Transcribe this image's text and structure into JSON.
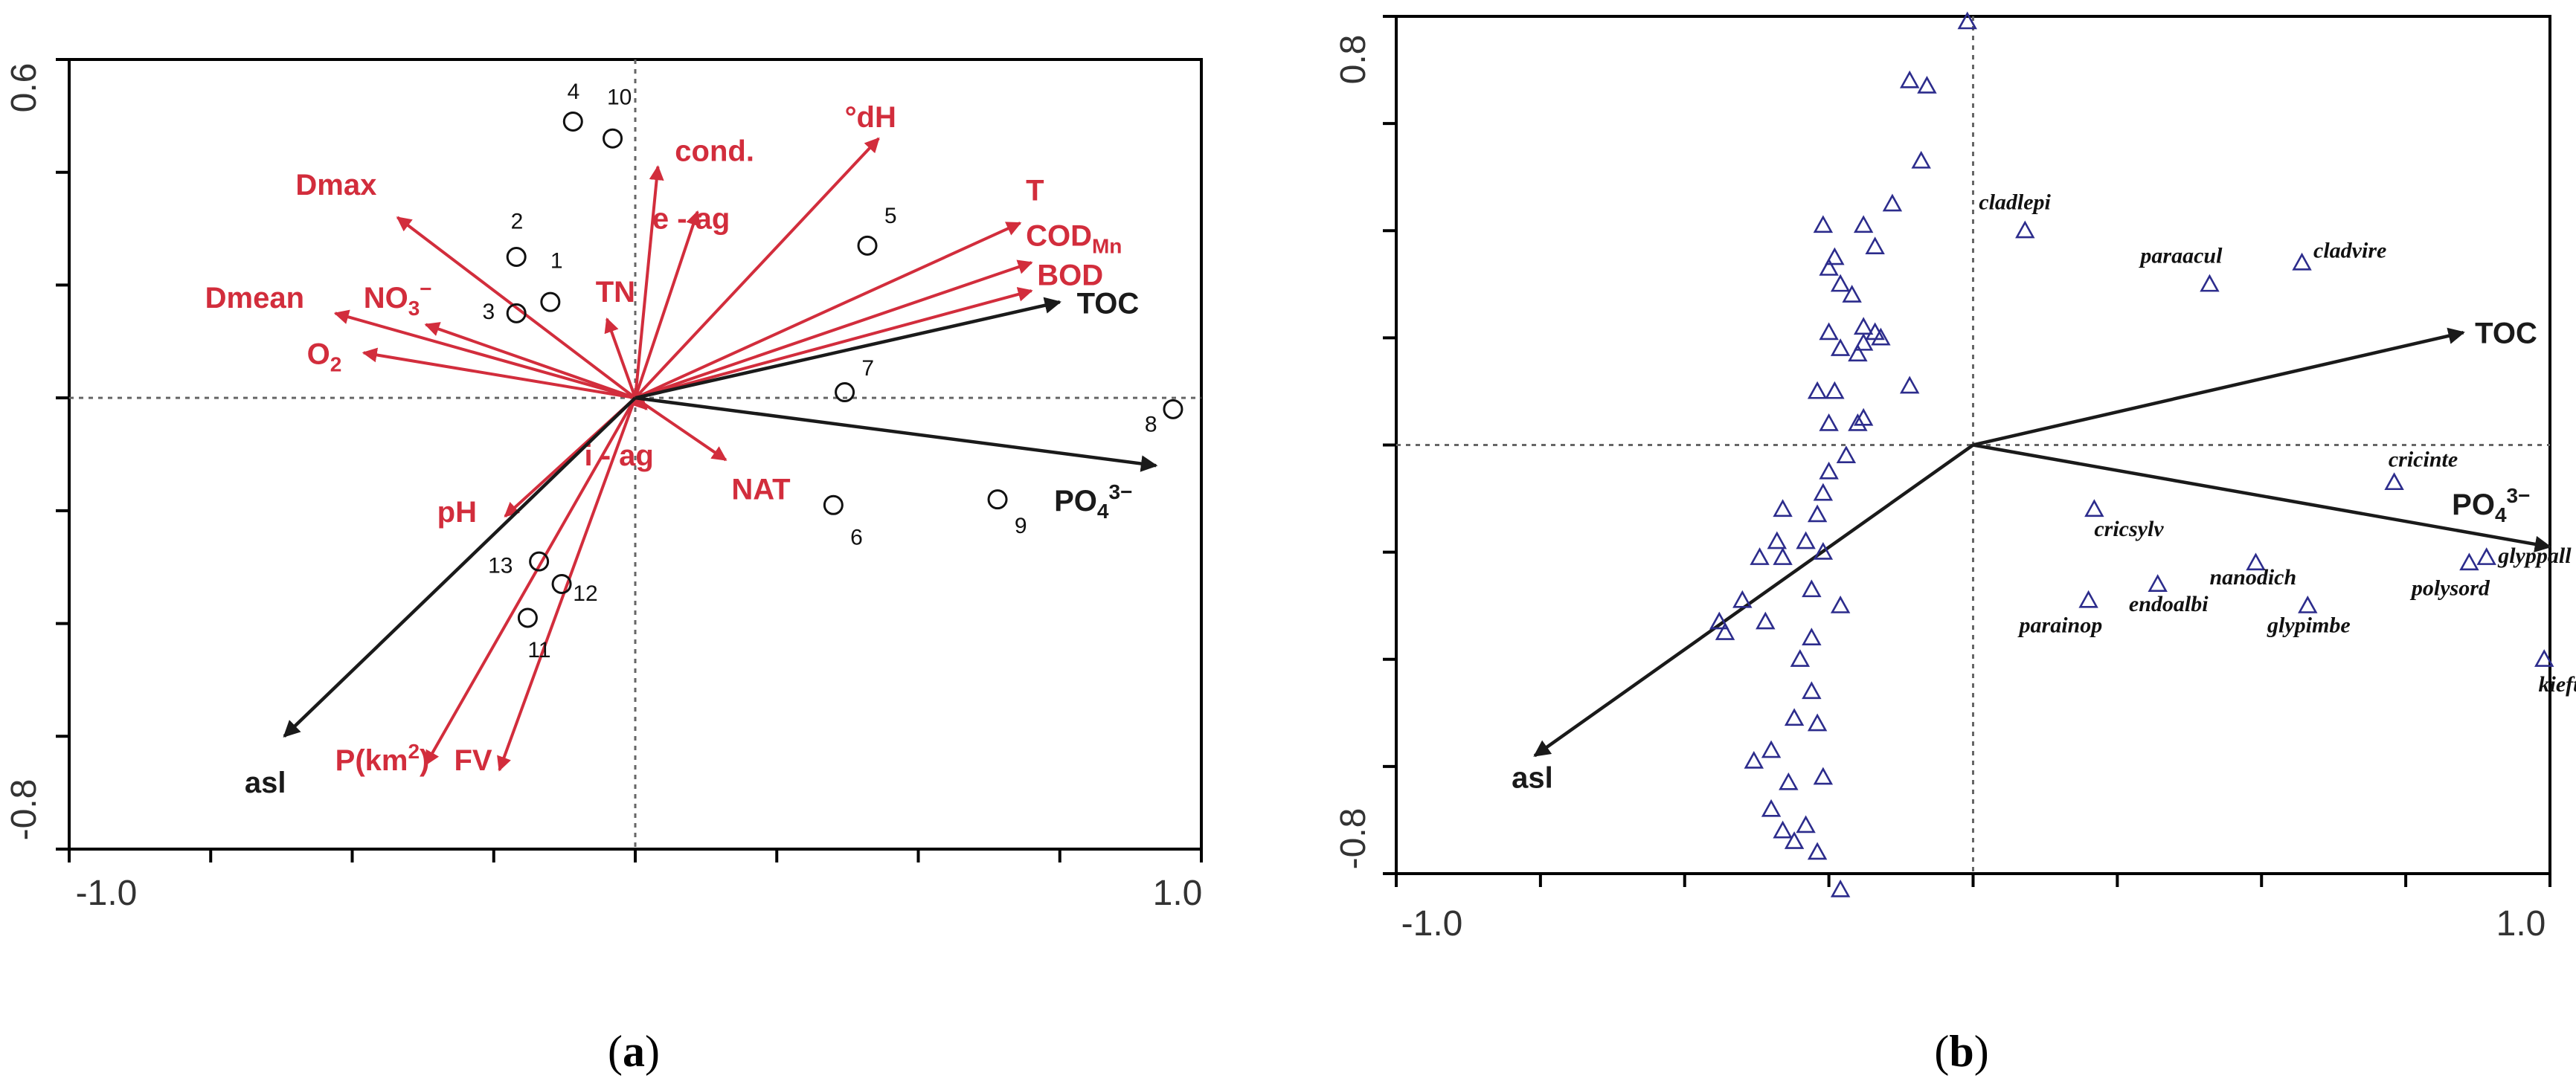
{
  "colors": {
    "env_arrow": "#d22d3c",
    "key_arrow": "#1a1a1a",
    "site_marker": "#111111",
    "species_marker": "#2c2c8c",
    "frame": "#000000"
  },
  "chart_data": [
    {
      "id": "a",
      "type": "scatter",
      "subtype": "ordination-biplot",
      "caption": {
        "open": "(",
        "letter": "a",
        "close": ")"
      },
      "xlim": [
        -1.0,
        1.0
      ],
      "ylim": [
        -0.8,
        0.6
      ],
      "x_tick_labels": {
        "min": "-1.0",
        "max": "1.0"
      },
      "y_tick_labels": {
        "min": "-0.8",
        "max": "0.6"
      },
      "env_arrows": [
        {
          "name": "Dmax",
          "label": "Dmax",
          "x": -0.42,
          "y": 0.32,
          "lx": -0.6,
          "ly": 0.36
        },
        {
          "name": "Dmean",
          "label": "Dmean",
          "x": -0.53,
          "y": 0.15,
          "lx": -0.76,
          "ly": 0.16
        },
        {
          "name": "NO3",
          "label": "NO",
          "sub": "3",
          "sup": "−",
          "x": -0.37,
          "y": 0.13,
          "lx": -0.48,
          "ly": 0.16
        },
        {
          "name": "O2",
          "label": "O",
          "sub": "2",
          "x": -0.48,
          "y": 0.08,
          "lx": -0.58,
          "ly": 0.06
        },
        {
          "name": "TN",
          "label": "TN",
          "x": -0.05,
          "y": 0.14,
          "lx": -0.07,
          "ly": 0.17
        },
        {
          "name": "e-ag",
          "label": "e - ag",
          "x": 0.11,
          "y": 0.33,
          "lx": 0.03,
          "ly": 0.3
        },
        {
          "name": "cond.",
          "label": "cond.",
          "x": 0.04,
          "y": 0.41,
          "lx": 0.07,
          "ly": 0.42
        },
        {
          "name": "dH",
          "label": "°dH",
          "x": 0.43,
          "y": 0.46,
          "lx": 0.37,
          "ly": 0.48
        },
        {
          "name": "T",
          "label": "T",
          "x": 0.68,
          "y": 0.31,
          "lx": 0.69,
          "ly": 0.35
        },
        {
          "name": "CODMn",
          "label": "COD",
          "sub": "Mn",
          "x": 0.7,
          "y": 0.24,
          "lx": 0.69,
          "ly": 0.27
        },
        {
          "name": "BOD",
          "label": "BOD",
          "x": 0.7,
          "y": 0.19,
          "lx": 0.71,
          "ly": 0.2
        },
        {
          "name": "i-ag",
          "label": "i - ag",
          "x": 0.02,
          "y": -0.02,
          "lx": -0.09,
          "ly": -0.12
        },
        {
          "name": "NAT",
          "label": "NAT",
          "x": 0.16,
          "y": -0.11,
          "lx": 0.17,
          "ly": -0.18
        },
        {
          "name": "pH",
          "label": "pH",
          "x": -0.23,
          "y": -0.21,
          "lx": -0.35,
          "ly": -0.22
        },
        {
          "name": "P(km2)",
          "label": "P(km",
          "sup": "2",
          "close": ")",
          "x": -0.37,
          "y": -0.65,
          "lx": -0.53,
          "ly": -0.66
        },
        {
          "name": "FV",
          "label": "FV",
          "x": -0.24,
          "y": -0.66,
          "lx": -0.32,
          "ly": -0.66
        }
      ],
      "key_arrows": [
        {
          "name": "TOC",
          "label": "TOC",
          "x": 0.75,
          "y": 0.17,
          "lx": 0.78,
          "ly": 0.15
        },
        {
          "name": "PO4",
          "label": "PO",
          "sub": "4",
          "sup": "3−",
          "x": 0.92,
          "y": -0.12,
          "lx": 0.74,
          "ly": -0.2
        },
        {
          "name": "asl",
          "label": "asl",
          "x": -0.62,
          "y": -0.6,
          "lx": -0.69,
          "ly": -0.7
        }
      ],
      "sites": [
        {
          "label": "1",
          "x": -0.15,
          "y": 0.17,
          "lx": -0.15,
          "ly": 0.23
        },
        {
          "label": "2",
          "x": -0.21,
          "y": 0.25,
          "lx": -0.22,
          "ly": 0.3
        },
        {
          "label": "3",
          "x": -0.21,
          "y": 0.15,
          "lx": -0.27,
          "ly": 0.14
        },
        {
          "label": "4",
          "x": -0.11,
          "y": 0.49,
          "lx": -0.12,
          "ly": 0.53
        },
        {
          "label": "10",
          "x": -0.04,
          "y": 0.46,
          "lx": -0.05,
          "ly": 0.52
        },
        {
          "label": "5",
          "x": 0.41,
          "y": 0.27,
          "lx": 0.44,
          "ly": 0.31
        },
        {
          "label": "7",
          "x": 0.37,
          "y": 0.01,
          "lx": 0.4,
          "ly": 0.04
        },
        {
          "label": "8",
          "x": 0.95,
          "y": -0.02,
          "lx": 0.9,
          "ly": -0.06
        },
        {
          "label": "6",
          "x": 0.35,
          "y": -0.19,
          "lx": 0.38,
          "ly": -0.26
        },
        {
          "label": "9",
          "x": 0.64,
          "y": -0.18,
          "lx": 0.67,
          "ly": -0.24
        },
        {
          "label": "13",
          "x": -0.17,
          "y": -0.29,
          "lx": -0.26,
          "ly": -0.31
        },
        {
          "label": "12",
          "x": -0.13,
          "y": -0.33,
          "lx": -0.11,
          "ly": -0.36
        },
        {
          "label": "11",
          "x": -0.19,
          "y": -0.39,
          "lx": -0.19,
          "ly": -0.46
        }
      ]
    },
    {
      "id": "b",
      "type": "scatter",
      "subtype": "ordination-biplot",
      "caption": {
        "open": "(",
        "letter": "b",
        "close": ")"
      },
      "xlim": [
        -1.0,
        1.0
      ],
      "ylim": [
        -0.8,
        0.8
      ],
      "x_tick_labels": {
        "min": "-1.0",
        "max": "1.0"
      },
      "y_tick_labels": {
        "min": "-0.8",
        "max": "0.8"
      },
      "key_arrows": [
        {
          "name": "TOC",
          "label": "TOC",
          "x": 0.85,
          "y": 0.21,
          "lx": 0.87,
          "ly": 0.19
        },
        {
          "name": "PO4",
          "label": "PO",
          "sub": "4",
          "sup": "3−",
          "x": 1.0,
          "y": -0.19,
          "lx": 0.83,
          "ly": -0.13
        },
        {
          "name": "asl",
          "label": "asl",
          "x": -0.76,
          "y": -0.58,
          "lx": -0.8,
          "ly": -0.64
        }
      ],
      "labelled_species": [
        {
          "label": "cladlepi",
          "x": 0.09,
          "y": 0.4,
          "lx": 0.01,
          "ly": 0.44
        },
        {
          "label": "paraacul",
          "x": 0.41,
          "y": 0.3,
          "lx": 0.29,
          "ly": 0.34
        },
        {
          "label": "cladvire",
          "x": 0.57,
          "y": 0.34,
          "lx": 0.59,
          "ly": 0.35
        },
        {
          "label": "cricinte",
          "x": 0.73,
          "y": -0.07,
          "lx": 0.72,
          "ly": -0.04
        },
        {
          "label": "cricsylv",
          "x": 0.21,
          "y": -0.12,
          "lx": 0.21,
          "ly": -0.17
        },
        {
          "label": "glyppall",
          "x": 0.89,
          "y": -0.21,
          "lx": 0.91,
          "ly": -0.22
        },
        {
          "label": "polysord",
          "x": 0.86,
          "y": -0.22,
          "lx": 0.76,
          "ly": -0.28
        },
        {
          "label": "nanodich",
          "x": 0.49,
          "y": -0.22,
          "lx": 0.41,
          "ly": -0.26
        },
        {
          "label": "endoalbi",
          "x": 0.32,
          "y": -0.26,
          "lx": 0.27,
          "ly": -0.31
        },
        {
          "label": "parainop",
          "x": 0.2,
          "y": -0.29,
          "lx": 0.08,
          "ly": -0.35
        },
        {
          "label": "glypimbe",
          "x": 0.58,
          "y": -0.3,
          "lx": 0.51,
          "ly": -0.35
        },
        {
          "label": "kieftend",
          "x": 0.99,
          "y": -0.4,
          "lx": 0.98,
          "ly": -0.46
        }
      ],
      "species_points": [
        [
          -0.01,
          0.79
        ],
        [
          -0.11,
          0.68
        ],
        [
          -0.08,
          0.67
        ],
        [
          -0.09,
          0.53
        ],
        [
          -0.14,
          0.45
        ],
        [
          -0.19,
          0.41
        ],
        [
          -0.17,
          0.37
        ],
        [
          -0.26,
          0.41
        ],
        [
          -0.24,
          0.35
        ],
        [
          -0.25,
          0.33
        ],
        [
          -0.23,
          0.3
        ],
        [
          -0.21,
          0.28
        ],
        [
          -0.25,
          0.21
        ],
        [
          -0.19,
          0.22
        ],
        [
          -0.17,
          0.21
        ],
        [
          -0.16,
          0.2
        ],
        [
          -0.23,
          0.18
        ],
        [
          -0.2,
          0.17
        ],
        [
          -0.19,
          0.19
        ],
        [
          -0.11,
          0.11
        ],
        [
          -0.24,
          0.1
        ],
        [
          -0.27,
          0.1
        ],
        [
          -0.19,
          0.05
        ],
        [
          -0.2,
          0.04
        ],
        [
          -0.25,
          0.04
        ],
        [
          -0.22,
          -0.02
        ],
        [
          -0.25,
          -0.05
        ],
        [
          -0.26,
          -0.09
        ],
        [
          -0.33,
          -0.12
        ],
        [
          -0.27,
          -0.13
        ],
        [
          -0.34,
          -0.18
        ],
        [
          -0.37,
          -0.21
        ],
        [
          -0.33,
          -0.21
        ],
        [
          -0.29,
          -0.18
        ],
        [
          -0.26,
          -0.2
        ],
        [
          -0.4,
          -0.29
        ],
        [
          -0.44,
          -0.33
        ],
        [
          -0.43,
          -0.35
        ],
        [
          -0.36,
          -0.33
        ],
        [
          -0.28,
          -0.27
        ],
        [
          -0.23,
          -0.3
        ],
        [
          -0.28,
          -0.36
        ],
        [
          -0.3,
          -0.4
        ],
        [
          -0.28,
          -0.46
        ],
        [
          -0.31,
          -0.51
        ],
        [
          -0.27,
          -0.52
        ],
        [
          -0.35,
          -0.57
        ],
        [
          -0.32,
          -0.63
        ],
        [
          -0.35,
          -0.68
        ],
        [
          -0.29,
          -0.71
        ],
        [
          -0.33,
          -0.72
        ],
        [
          -0.27,
          -0.76
        ],
        [
          -0.31,
          -0.74
        ],
        [
          -0.23,
          -0.83
        ],
        [
          -0.38,
          -0.59
        ],
        [
          -0.26,
          -0.62
        ]
      ]
    }
  ]
}
